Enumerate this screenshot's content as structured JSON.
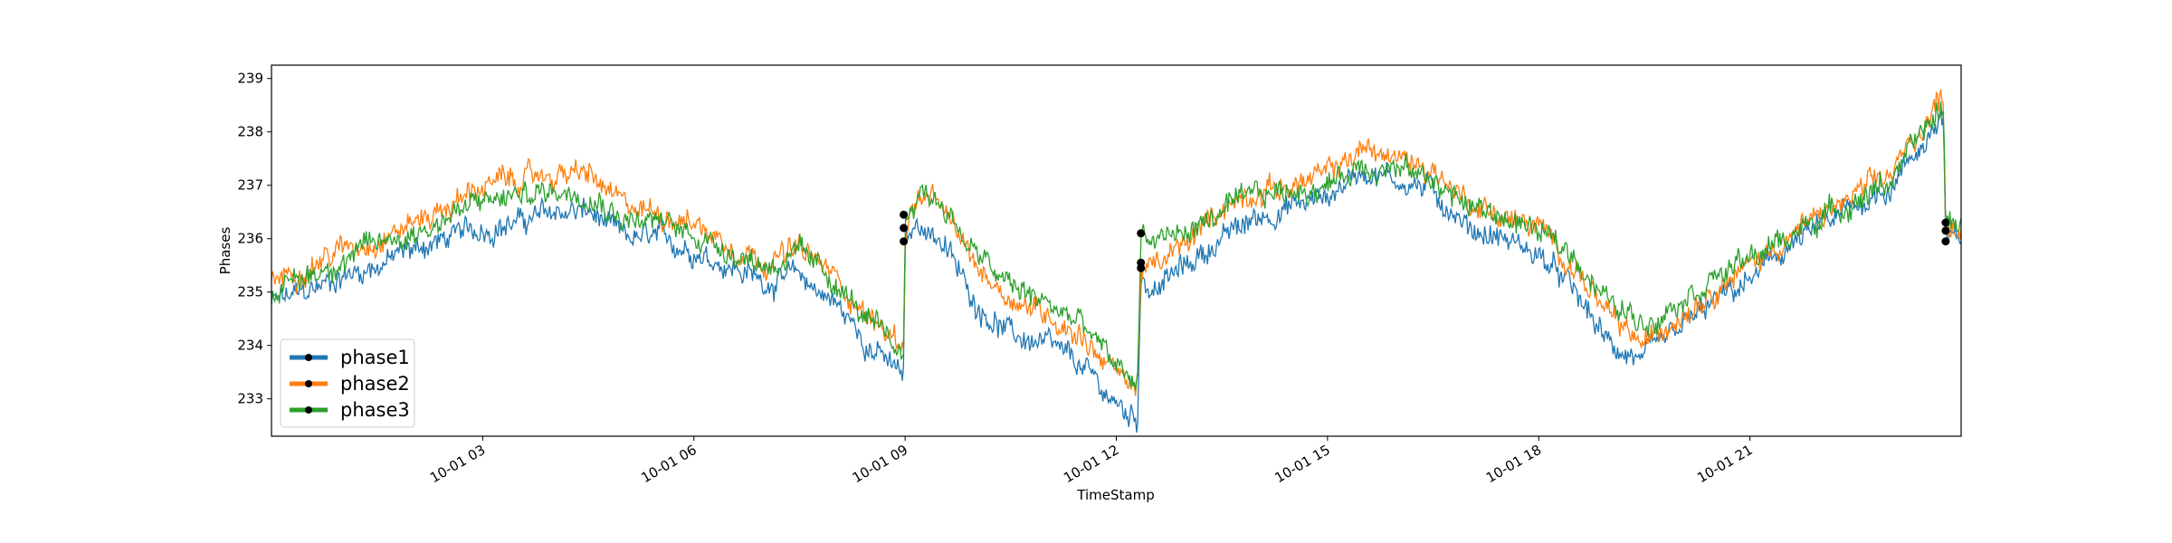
{
  "chart_data": {
    "type": "line",
    "xlabel": "TimeStamp",
    "ylabel": "Phases",
    "x_range": [
      "10-01 00:00",
      "10-01 24:00"
    ],
    "ylim": [
      232.3,
      239.25
    ],
    "y_ticks": [
      233,
      234,
      235,
      236,
      237,
      238,
      239
    ],
    "x_ticks": [
      {
        "hour": 3,
        "label": "10-01 03"
      },
      {
        "hour": 6,
        "label": "10-01 06"
      },
      {
        "hour": 9,
        "label": "10-01 09"
      },
      {
        "hour": 12,
        "label": "10-01 12"
      },
      {
        "hour": 15,
        "label": "10-01 15"
      },
      {
        "hour": 18,
        "label": "10-01 18"
      },
      {
        "hour": 21,
        "label": "10-01 21"
      }
    ],
    "grid": false,
    "legend": "lower-left",
    "series": [
      {
        "name": "phase1",
        "color": "#1f77b4",
        "x_hours": [
          0,
          0.5,
          1,
          1.5,
          2,
          2.5,
          3,
          3.5,
          4,
          4.5,
          5,
          5.5,
          6,
          6.5,
          7,
          7.5,
          8,
          8.5,
          8.98,
          9.0,
          9.2,
          9.5,
          10,
          10.5,
          11,
          11.5,
          12.0,
          12.3,
          12.35,
          12.5,
          13,
          13.5,
          14,
          14.5,
          15,
          15.5,
          16,
          16.5,
          17,
          17.5,
          18,
          18.5,
          19,
          19.5,
          20,
          20.5,
          21,
          21.5,
          22,
          22.5,
          23,
          23.75,
          23.78,
          24
        ],
        "values": [
          234.8,
          235.0,
          235.3,
          235.5,
          235.8,
          236.0,
          236.2,
          236.3,
          236.5,
          236.5,
          236.0,
          236.0,
          235.8,
          235.5,
          235.2,
          235.3,
          234.8,
          234.0,
          233.4,
          235.9,
          236.3,
          236.0,
          234.8,
          234.2,
          234.0,
          233.6,
          232.9,
          232.6,
          235.4,
          235.0,
          235.5,
          236.0,
          236.4,
          236.6,
          236.8,
          237.3,
          237.1,
          236.9,
          236.2,
          236.0,
          235.7,
          235.0,
          234.0,
          233.7,
          234.3,
          234.8,
          235.2,
          235.8,
          236.2,
          236.6,
          237.0,
          238.3,
          235.9,
          236.0
        ],
        "markers_hours": [
          8.98,
          12.35,
          23.78
        ],
        "markers_values": [
          235.95,
          235.45,
          235.95
        ]
      },
      {
        "name": "phase2",
        "color": "#ff7f0e",
        "x_hours": [
          0,
          0.5,
          1,
          1.5,
          2,
          2.5,
          3,
          3.5,
          4,
          4.5,
          5,
          5.5,
          6,
          6.5,
          7,
          7.5,
          8,
          8.5,
          8.98,
          9.0,
          9.2,
          9.5,
          10,
          10.5,
          11,
          11.5,
          12.0,
          12.3,
          12.35,
          12.5,
          13,
          13.5,
          14,
          14.5,
          15,
          15.5,
          16,
          16.5,
          17,
          17.5,
          18,
          18.5,
          19,
          19.5,
          20,
          20.5,
          21,
          21.5,
          22,
          22.5,
          23,
          23.75,
          23.78,
          24
        ],
        "values": [
          235.2,
          235.5,
          235.8,
          236.0,
          236.3,
          236.6,
          237.0,
          237.1,
          237.2,
          237.2,
          236.6,
          236.5,
          236.3,
          235.9,
          235.6,
          235.8,
          235.3,
          234.5,
          234.0,
          236.2,
          236.8,
          236.6,
          235.5,
          234.9,
          234.6,
          234.2,
          233.5,
          233.2,
          235.5,
          235.4,
          235.9,
          236.6,
          236.9,
          237.0,
          237.2,
          237.7,
          237.5,
          237.3,
          236.7,
          236.4,
          236.2,
          235.5,
          234.5,
          234.0,
          234.6,
          235.1,
          235.5,
          236.0,
          236.4,
          236.8,
          237.2,
          238.7,
          236.3,
          236.2
        ],
        "markers_hours": [
          8.98,
          12.35,
          23.78
        ],
        "markers_values": [
          236.2,
          235.55,
          236.15
        ]
      },
      {
        "name": "phase3",
        "color": "#2ca02c",
        "x_hours": [
          0,
          0.5,
          1,
          1.5,
          2,
          2.5,
          3,
          3.5,
          4,
          4.5,
          5,
          5.5,
          6,
          6.5,
          7,
          7.5,
          8,
          8.5,
          8.98,
          9.0,
          9.2,
          9.5,
          10,
          10.5,
          11,
          11.5,
          12.0,
          12.3,
          12.35,
          12.5,
          13,
          13.5,
          14,
          14.5,
          15,
          15.5,
          16,
          16.5,
          17,
          17.5,
          18,
          18.5,
          19,
          19.5,
          20,
          20.5,
          21,
          21.5,
          22,
          22.5,
          23,
          23.75,
          23.78,
          24
        ],
        "values": [
          235.0,
          235.3,
          235.6,
          235.9,
          236.1,
          236.4,
          236.7,
          236.8,
          236.9,
          236.9,
          236.4,
          236.3,
          236.1,
          235.8,
          235.5,
          235.7,
          235.2,
          234.4,
          233.8,
          236.4,
          236.9,
          236.7,
          235.7,
          235.1,
          234.8,
          234.4,
          233.6,
          233.3,
          236.1,
          236.0,
          236.1,
          236.5,
          236.8,
          236.9,
          237.0,
          237.4,
          237.3,
          237.1,
          236.6,
          236.4,
          236.1,
          235.7,
          234.8,
          234.4,
          234.9,
          235.3,
          235.6,
          236.0,
          236.4,
          236.7,
          237.1,
          238.5,
          236.3,
          236.3
        ],
        "markers_hours": [
          8.98,
          12.35,
          23.78
        ],
        "markers_values": [
          236.45,
          236.1,
          236.3
        ]
      }
    ]
  }
}
